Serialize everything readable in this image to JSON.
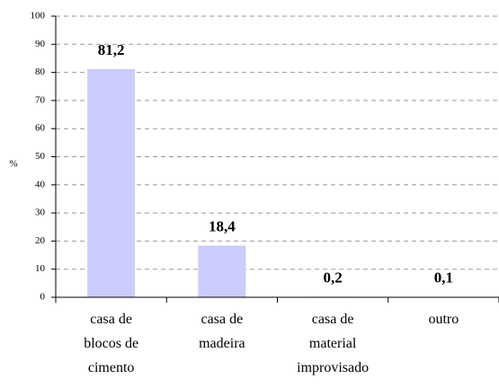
{
  "chart_data": {
    "type": "bar",
    "y_label": "%",
    "categories": [
      "casa de\nblocos de\ncimento",
      "casa de\nmadeira",
      "casa de\nmaterial\nimprovisado",
      "outro"
    ],
    "values": [
      81.2,
      18.4,
      0.2,
      0.1
    ],
    "value_labels": [
      "81,2",
      "18,4",
      "0,2",
      "0,1"
    ],
    "color": "#ccccff",
    "ylim": [
      0,
      100
    ],
    "yticks": [
      0,
      10,
      20,
      30,
      40,
      50,
      60,
      70,
      80,
      90,
      100
    ],
    "grid": true
  }
}
